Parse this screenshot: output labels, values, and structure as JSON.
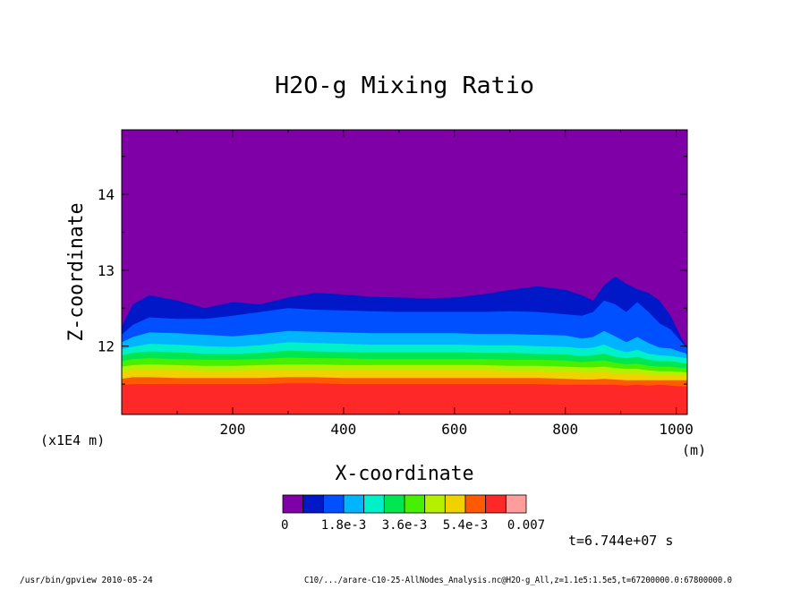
{
  "chart_data": {
    "type": "heatmap",
    "title": "H2O-g Mixing Ratio",
    "xlabel": "X-coordinate",
    "ylabel": "Z-coordinate",
    "x_unit": "(m)",
    "y_unit": "(x1E4 m)",
    "xlim": [
      0,
      1020
    ],
    "ylim": [
      11.1,
      14.85
    ],
    "x_ticks": [
      200,
      400,
      600,
      800,
      1000
    ],
    "y_ticks": [
      12,
      13,
      14
    ],
    "x_tick_labels": [
      "200",
      "400",
      "600",
      "800",
      "1000"
    ],
    "y_tick_labels": [
      "12",
      "13",
      "14"
    ],
    "colorbar": {
      "colors": [
        "#7f00a6",
        "#0018c8",
        "#0050ff",
        "#00b4ff",
        "#00f0c8",
        "#00e650",
        "#46f000",
        "#b4f000",
        "#f0d200",
        "#ff5a00",
        "#ff2828",
        "#ff9c9c"
      ],
      "labels": [
        "0",
        "1.8e-3",
        "3.6e-3",
        "5.4e-3",
        "0.007"
      ],
      "label_positions": [
        0,
        3,
        6,
        9,
        12
      ]
    },
    "layer_x": [
      0,
      20,
      50,
      100,
      150,
      200,
      250,
      300,
      350,
      400,
      450,
      500,
      550,
      600,
      650,
      700,
      750,
      800,
      830,
      850,
      870,
      890,
      910,
      930,
      950,
      970,
      990,
      1010,
      1020
    ],
    "layer_tops": [
      [
        12.26,
        12.55,
        12.67,
        12.6,
        12.5,
        12.58,
        12.55,
        12.64,
        12.7,
        12.68,
        12.65,
        12.64,
        12.63,
        12.64,
        12.68,
        12.74,
        12.79,
        12.74,
        12.67,
        12.6,
        12.8,
        12.92,
        12.82,
        12.75,
        12.7,
        12.6,
        12.4,
        12.1,
        11.98
      ],
      [
        12.15,
        12.28,
        12.38,
        12.36,
        12.36,
        12.4,
        12.45,
        12.5,
        12.48,
        12.47,
        12.46,
        12.45,
        12.45,
        12.45,
        12.45,
        12.46,
        12.45,
        12.42,
        12.4,
        12.45,
        12.6,
        12.55,
        12.45,
        12.58,
        12.45,
        12.3,
        12.22,
        12.05,
        11.97
      ],
      [
        12.05,
        12.12,
        12.18,
        12.17,
        12.15,
        12.13,
        12.16,
        12.2,
        12.19,
        12.18,
        12.17,
        12.17,
        12.17,
        12.17,
        12.16,
        12.16,
        12.15,
        12.14,
        12.1,
        12.12,
        12.2,
        12.13,
        12.05,
        12.12,
        12.04,
        11.98,
        11.97,
        11.92,
        11.9
      ],
      [
        11.96,
        11.99,
        12.03,
        12.02,
        12.0,
        11.99,
        12.01,
        12.05,
        12.04,
        12.03,
        12.02,
        12.02,
        12.02,
        12.02,
        12.01,
        12.01,
        12.0,
        11.99,
        11.97,
        11.98,
        12.02,
        11.96,
        11.92,
        11.95,
        11.9,
        11.88,
        11.87,
        11.85,
        11.84
      ],
      [
        11.88,
        11.91,
        11.93,
        11.92,
        11.9,
        11.9,
        11.91,
        11.94,
        11.93,
        11.92,
        11.92,
        11.92,
        11.92,
        11.92,
        11.91,
        11.91,
        11.9,
        11.89,
        11.87,
        11.88,
        11.9,
        11.86,
        11.84,
        11.86,
        11.82,
        11.8,
        11.8,
        11.78,
        11.77
      ],
      [
        11.8,
        11.83,
        11.84,
        11.83,
        11.82,
        11.82,
        11.83,
        11.85,
        11.84,
        11.84,
        11.83,
        11.83,
        11.83,
        11.83,
        11.83,
        11.82,
        11.82,
        11.81,
        11.79,
        11.8,
        11.81,
        11.78,
        11.76,
        11.77,
        11.74,
        11.73,
        11.73,
        11.71,
        11.71
      ],
      [
        11.73,
        11.75,
        11.76,
        11.75,
        11.74,
        11.74,
        11.75,
        11.76,
        11.76,
        11.75,
        11.75,
        11.75,
        11.75,
        11.75,
        11.75,
        11.74,
        11.74,
        11.73,
        11.72,
        11.72,
        11.73,
        11.71,
        11.7,
        11.7,
        11.68,
        11.67,
        11.67,
        11.66,
        11.65
      ],
      [
        11.66,
        11.68,
        11.69,
        11.68,
        11.67,
        11.67,
        11.68,
        11.69,
        11.68,
        11.68,
        11.68,
        11.68,
        11.68,
        11.68,
        11.68,
        11.67,
        11.67,
        11.66,
        11.65,
        11.65,
        11.66,
        11.64,
        11.64,
        11.64,
        11.62,
        11.62,
        11.62,
        11.61,
        11.6
      ],
      [
        11.57,
        11.59,
        11.59,
        11.58,
        11.58,
        11.58,
        11.58,
        11.59,
        11.59,
        11.58,
        11.58,
        11.58,
        11.58,
        11.58,
        11.58,
        11.58,
        11.58,
        11.57,
        11.56,
        11.56,
        11.57,
        11.56,
        11.55,
        11.55,
        11.55,
        11.55,
        11.55,
        11.55,
        11.55
      ],
      [
        11.49,
        11.5,
        11.5,
        11.5,
        11.5,
        11.5,
        11.5,
        11.51,
        11.51,
        11.5,
        11.5,
        11.5,
        11.5,
        11.5,
        11.5,
        11.5,
        11.5,
        11.49,
        11.49,
        11.49,
        11.49,
        11.49,
        11.48,
        11.49,
        11.48,
        11.49,
        11.48,
        11.47,
        11.47
      ]
    ]
  },
  "annotations": {
    "time": "t=6.744e+07 s",
    "footer_left": "/usr/bin/gpview  2010-05-24",
    "footer_right": "C10/.../arare-C10-25-AllNodes_Analysis.nc@H2O-g_All,z=1.1e5:1.5e5,t=67200000.0:67800000.0"
  }
}
